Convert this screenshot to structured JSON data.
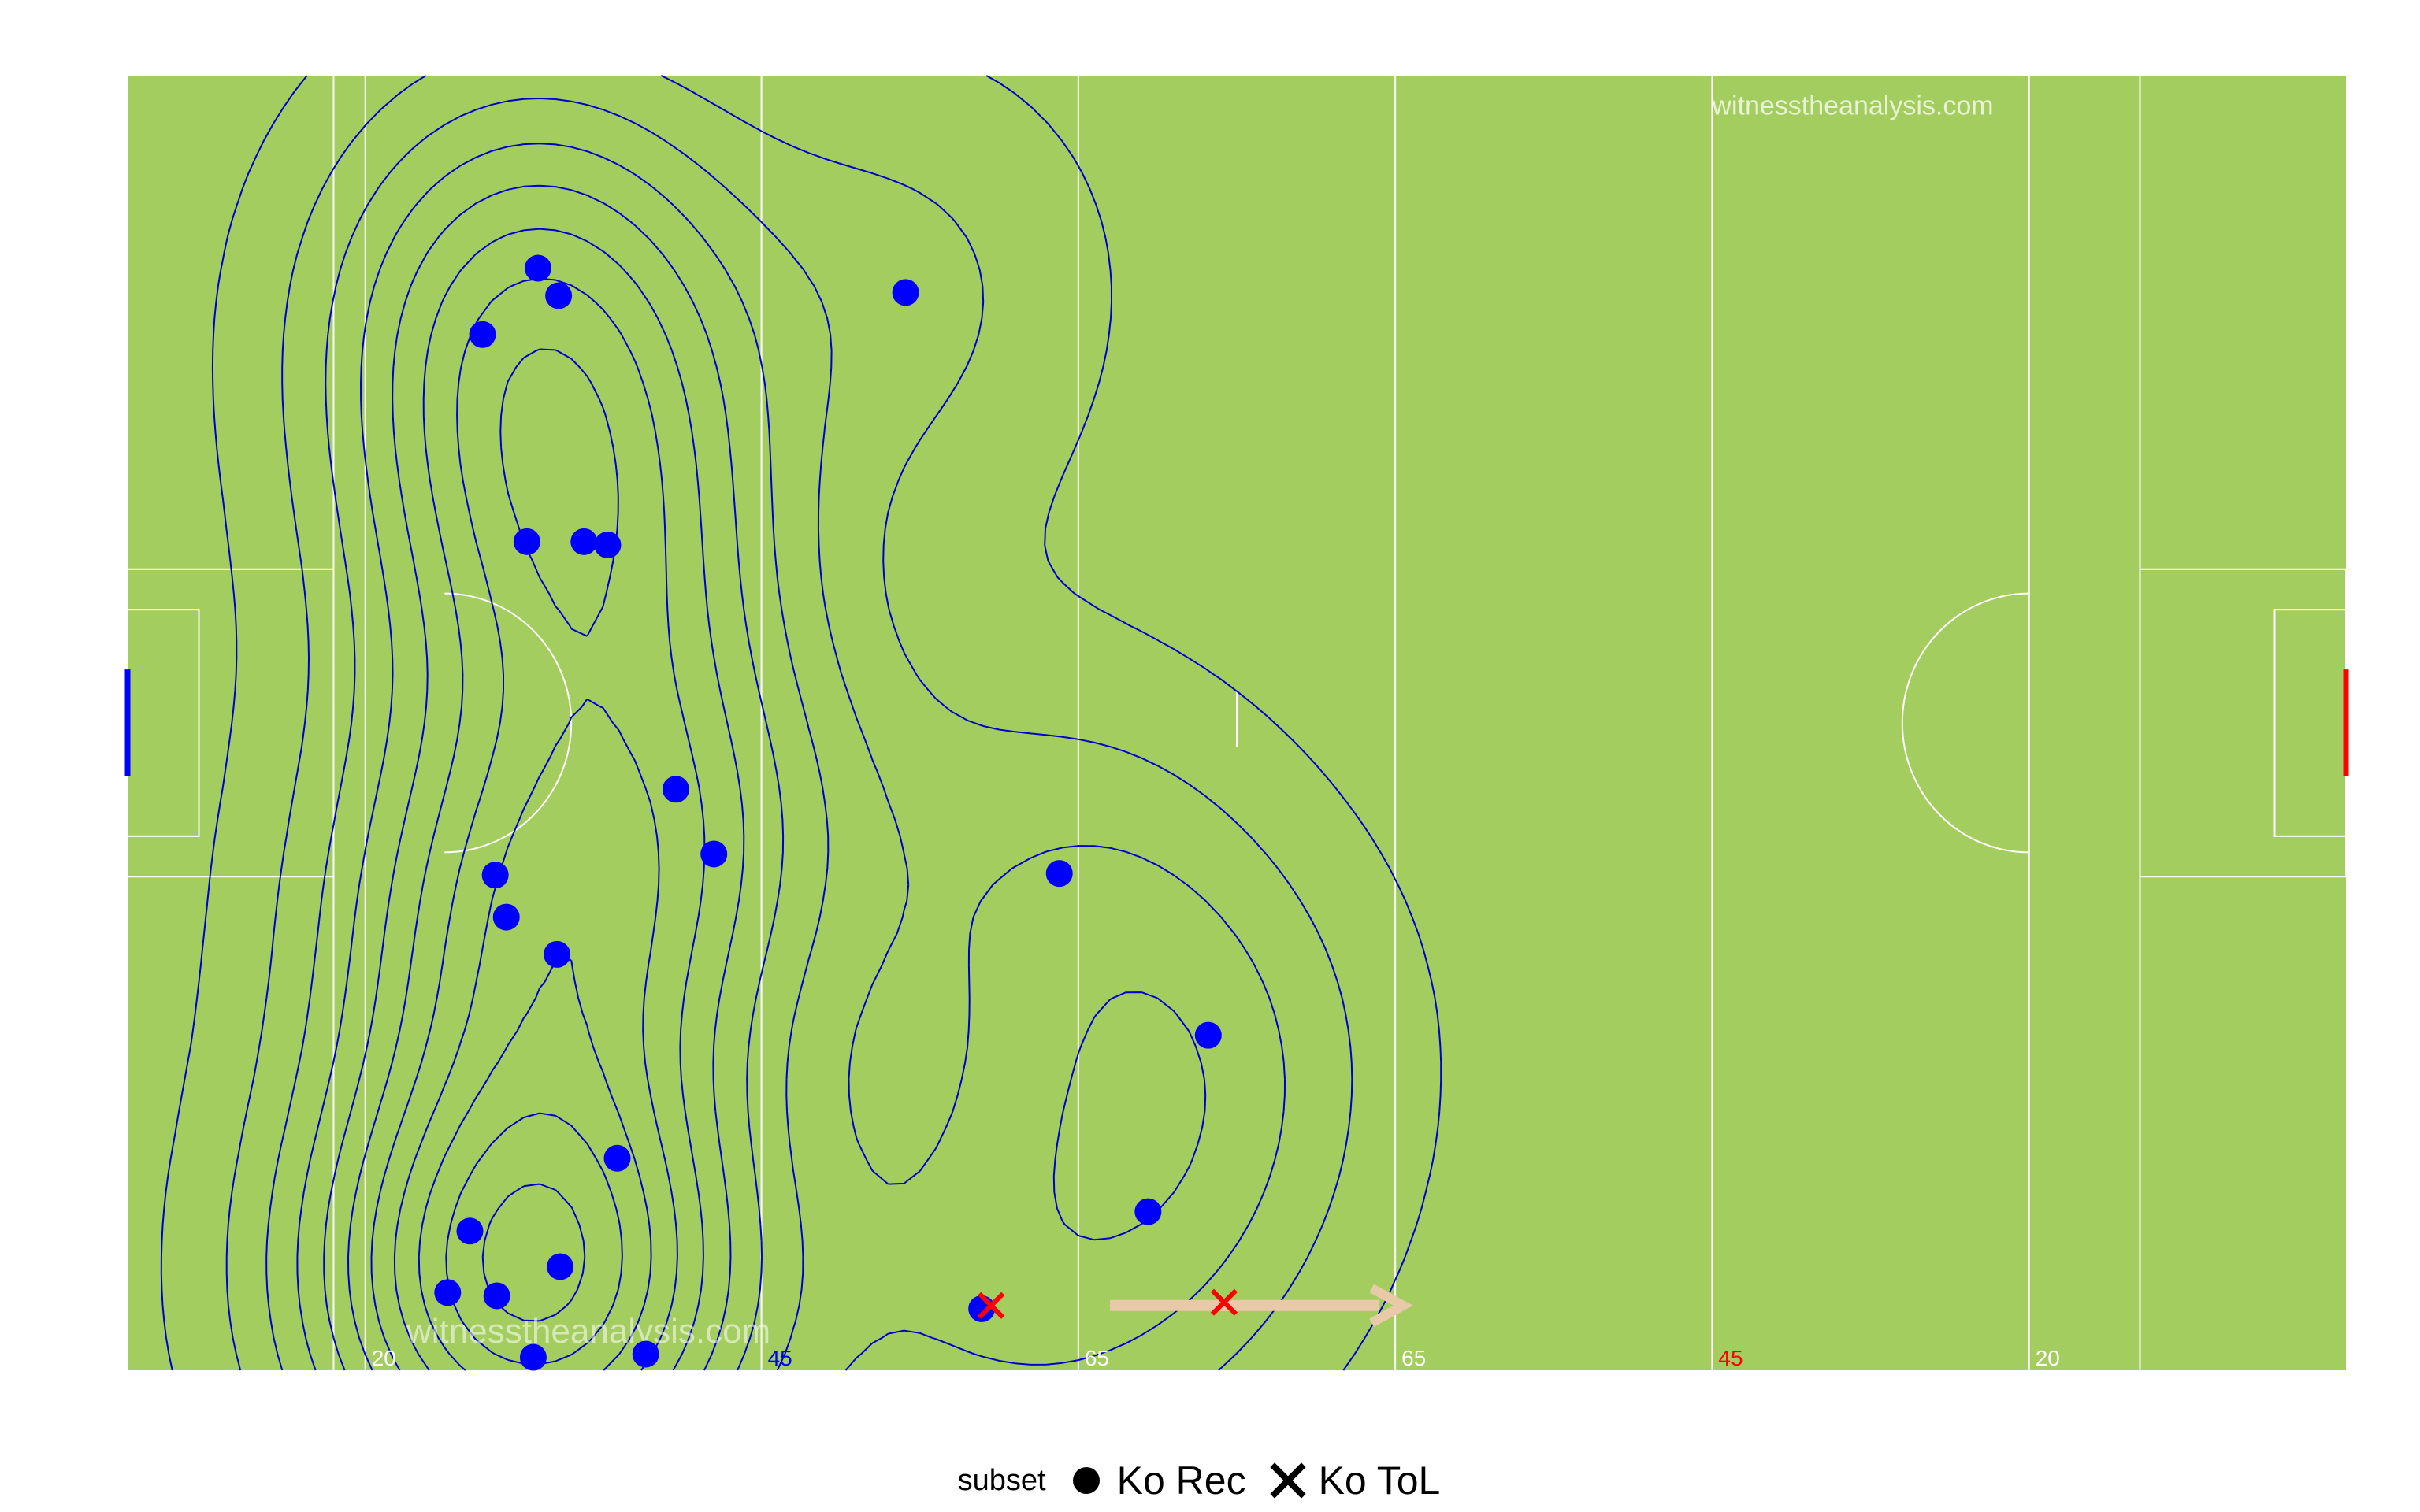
{
  "chart_data": {
    "type": "scatter",
    "title": "",
    "xlabel": "",
    "ylabel": "",
    "xlim": [
      0,
      140
    ],
    "ylim": [
      0,
      80
    ],
    "overlay": "2d density contours of Ko Rec points",
    "pitch": {
      "background": "#a3cd5e",
      "line_color": "#ffffff",
      "contour_color": "#0000cc",
      "markings": [
        {
          "x": 15,
          "label": "20",
          "color": "#ffffff"
        },
        {
          "x": 40,
          "label": "45",
          "color": "#0000ff"
        },
        {
          "x": 60,
          "label": "65",
          "color": "#ffffff"
        },
        {
          "x": 80,
          "label": "65",
          "color": "#ffffff"
        },
        {
          "x": 100,
          "label": "45",
          "color": "#ff0000"
        },
        {
          "x": 120,
          "label": "20",
          "color": "#ffffff"
        }
      ],
      "left_goal_color": "#0000ff",
      "right_goal_color": "#ff0000",
      "watermarks": [
        "witnesstheanalysis.com",
        "witnesstheanalysis.com"
      ]
    },
    "legend": {
      "title": "subset",
      "position": "bottom",
      "entries": [
        {
          "label": "Ko Rec",
          "shape": "circle"
        },
        {
          "label": "Ko ToL",
          "shape": "x"
        }
      ]
    },
    "series": [
      {
        "name": "Ko Rec",
        "shape": "circle",
        "color": "#0000ff",
        "x": [
          25.9,
          27.2,
          22.4,
          49.1,
          25.2,
          28.8,
          30.3,
          34.6,
          37.0,
          23.2,
          23.9,
          27.1,
          58.8,
          68.2,
          30.9,
          64.4,
          21.6,
          27.3,
          20.2,
          23.3,
          53.9,
          25.6,
          32.7
        ],
        "y": [
          68.1,
          66.4,
          64.0,
          66.6,
          51.2,
          51.2,
          51.0,
          35.9,
          31.9,
          30.6,
          28.0,
          25.7,
          30.7,
          20.7,
          13.1,
          9.8,
          8.6,
          6.4,
          4.8,
          4.6,
          3.8,
          0.8,
          1.0
        ]
      },
      {
        "name": "Ko ToL",
        "shape": "x",
        "color": "#ff0000",
        "x": [
          54.5,
          69.2
        ],
        "y": [
          4.0,
          4.2
        ]
      }
    ],
    "annotation": {
      "type": "arrow",
      "from": [
        62.0,
        4.0
      ],
      "to": [
        80.5,
        4.0
      ],
      "color": "#e8c9a8"
    }
  }
}
